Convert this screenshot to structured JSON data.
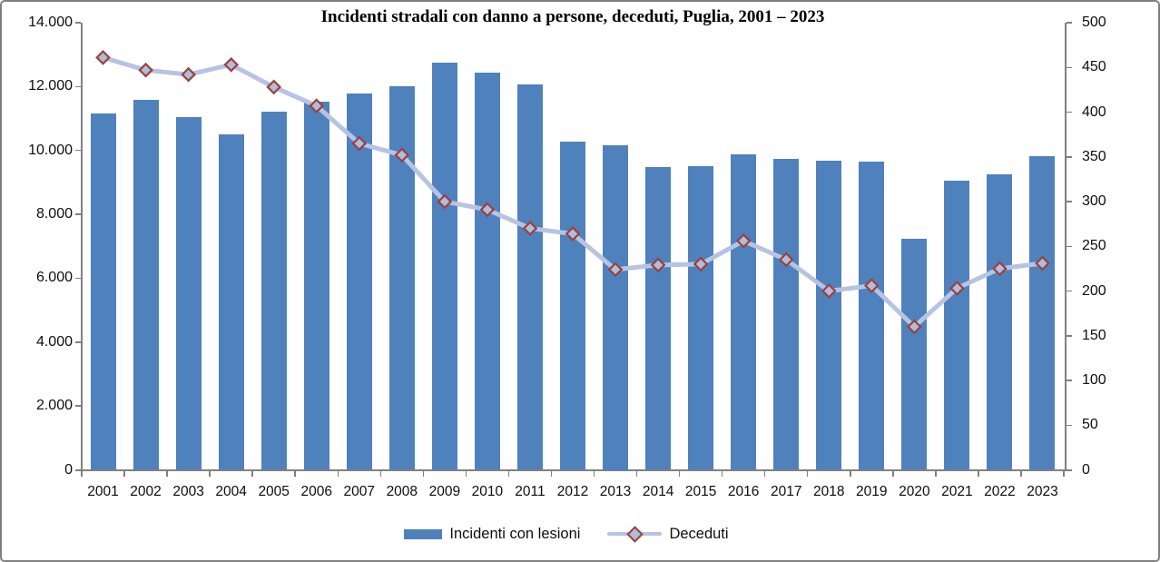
{
  "chart_data": {
    "type": "bar",
    "combo": "bar+line, dual axis",
    "title": "Incidenti stradali con danno a persone, deceduti, Puglia, 2001 – 2023",
    "categories": [
      "2001",
      "2002",
      "2003",
      "2004",
      "2005",
      "2006",
      "2007",
      "2008",
      "2009",
      "2010",
      "2011",
      "2012",
      "2013",
      "2014",
      "2015",
      "2016",
      "2017",
      "2018",
      "2019",
      "2020",
      "2021",
      "2022",
      "2023"
    ],
    "series": [
      {
        "name": "Incidenti con lesioni",
        "type": "bar",
        "axis": "left",
        "color": "#4f81bd",
        "values": [
          11150,
          11570,
          11030,
          10510,
          11210,
          11520,
          11780,
          12000,
          12760,
          12440,
          12070,
          10290,
          10150,
          9480,
          9500,
          9890,
          9740,
          9680,
          9650,
          7230,
          9040,
          9240,
          9810
        ]
      },
      {
        "name": "Deceduti",
        "type": "line",
        "axis": "right",
        "line_color": "#b7c3e3",
        "marker_fill": "#b3bcd9",
        "marker_border": "#99423e",
        "values": [
          461,
          447,
          442,
          453,
          428,
          407,
          365,
          352,
          300,
          291,
          270,
          264,
          224,
          229,
          230,
          256,
          235,
          200,
          206,
          160,
          203,
          225,
          231
        ]
      }
    ],
    "left_axis": {
      "min": 0,
      "max": 14000,
      "tick_step": 2000,
      "tick_labels": [
        "14.000",
        "12.000",
        "10.000",
        "8.000",
        "6.000",
        "4.000",
        "2.000",
        "0"
      ]
    },
    "right_axis": {
      "min": 0,
      "max": 500,
      "tick_step": 50,
      "tick_labels": [
        "500",
        "450",
        "400",
        "350",
        "300",
        "250",
        "200",
        "150",
        "100",
        "50",
        "0"
      ]
    },
    "grid": "off",
    "legend": {
      "position": "bottom",
      "items": [
        "Incidenti con lesioni",
        "Deceduti"
      ]
    }
  },
  "legend": {
    "bar_label": "Incidenti con lesioni",
    "line_label": "Deceduti"
  },
  "colors": {
    "bar": "#4f81bd",
    "line": "#b7c3e3",
    "marker_fill": "#b3bcd9",
    "marker_border": "#99423e",
    "axis": "#808080",
    "text": "#0d0d0d"
  }
}
